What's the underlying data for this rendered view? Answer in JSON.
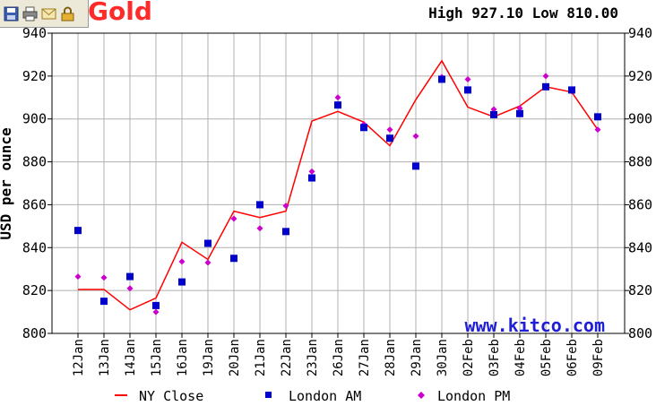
{
  "toolbar": {
    "buttons": [
      {
        "name": "save-icon",
        "color": "#3a5fb0"
      },
      {
        "name": "print-icon",
        "color": "#7a7a7a"
      },
      {
        "name": "email-icon",
        "color": "#d9b04a"
      },
      {
        "name": "lock-icon",
        "color": "#d9a020"
      }
    ]
  },
  "title": "y Gold",
  "highlow": "High 927.10 Low 810.00",
  "watermark": "www.kitco.com",
  "colors": {
    "ny_close": "#ff0000",
    "london_am": "#0000cc",
    "london_pm": "#cc00cc",
    "grid": "#b0b0b0",
    "title": "#ff2a2a"
  },
  "chart_data": {
    "type": "line",
    "ylabel": "USD per ounce",
    "ylim": [
      800,
      940
    ],
    "yticks": [
      800,
      820,
      840,
      860,
      880,
      900,
      920,
      940
    ],
    "categories": [
      "12Jan",
      "13Jan",
      "14Jan",
      "15Jan",
      "16Jan",
      "19Jan",
      "20Jan",
      "21Jan",
      "22Jan",
      "23Jan",
      "26Jan",
      "27Jan",
      "28Jan",
      "29Jan",
      "30Jan",
      "02Feb",
      "03Feb",
      "04Feb",
      "05Feb",
      "06Feb",
      "09Feb"
    ],
    "series": [
      {
        "name": "NY Close",
        "style": "line",
        "color": "#ff0000",
        "values": [
          820.5,
          820.5,
          811,
          816.5,
          842.5,
          834.5,
          857,
          854,
          857,
          899,
          903.5,
          898.5,
          887.5,
          909,
          927.1,
          905.5,
          901,
          906,
          915,
          912.5,
          895
        ]
      },
      {
        "name": "London AM",
        "style": "square",
        "color": "#0000cc",
        "values": [
          848,
          815,
          826.5,
          813,
          824,
          842,
          835,
          860,
          847.5,
          872.5,
          906.5,
          896,
          891,
          878,
          918.5,
          913.5,
          902,
          902.5,
          915,
          913.5,
          901
        ]
      },
      {
        "name": "London PM",
        "style": "diamond",
        "color": "#cc00cc",
        "values": [
          826.5,
          826,
          821,
          810,
          833.5,
          833,
          853.5,
          849,
          859.5,
          875.5,
          910,
          897.5,
          895,
          892,
          919.5,
          918.5,
          904.5,
          905,
          920,
          913,
          895
        ]
      }
    ]
  }
}
